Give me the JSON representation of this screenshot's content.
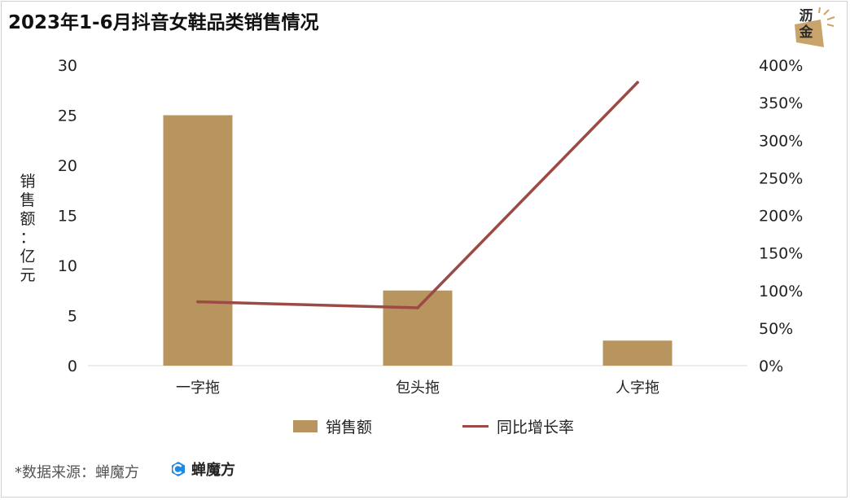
{
  "title": "2023年1-6月抖音女鞋品类销售情况",
  "logo": {
    "text_line1": "沥",
    "text_line2": "金",
    "icon": "lijin-logo-icon"
  },
  "chart_data": {
    "type": "bar",
    "title": "2023年1-6月抖音女鞋品类销售情况",
    "categories": [
      "一字拖",
      "包头拖",
      "人字拖"
    ],
    "series": [
      {
        "name": "销售额",
        "type": "bar",
        "axis": "left",
        "values": [
          25,
          7.5,
          2.5
        ],
        "color": "#b8945f"
      },
      {
        "name": "同比增长率",
        "type": "line",
        "axis": "right",
        "values": [
          85,
          77,
          377
        ],
        "unit": "%",
        "color": "#9b4a45"
      }
    ],
    "ylabel": "销售额：亿元",
    "ylim": [
      0,
      30
    ],
    "y_ticks": [
      "0",
      "5",
      "10",
      "15",
      "20",
      "25",
      "30"
    ],
    "y2lim": [
      0,
      400
    ],
    "y2_ticks": [
      "0%",
      "50%",
      "100%",
      "150%",
      "200%",
      "250%",
      "300%",
      "350%",
      "400%"
    ],
    "grid": false,
    "legend_position": "bottom"
  },
  "ylabel_chars": [
    "销",
    "售",
    "额",
    "：",
    "亿",
    "元"
  ],
  "legend": {
    "bar_label": "销售额",
    "line_label": "同比增长率"
  },
  "footer": {
    "source": "*数据来源：蝉魔方",
    "brand": "蝉魔方",
    "brand_icon": "chanmofang-logo-icon"
  }
}
